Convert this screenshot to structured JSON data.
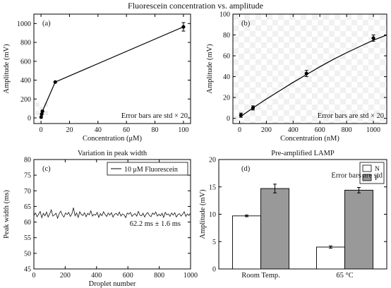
{
  "figure_title": "Fluorescein concentration vs. amplitude",
  "chart_data": [
    {
      "id": "a",
      "type": "line",
      "panel_label": "(a)",
      "title": "",
      "xlabel": "Concentration (μM)",
      "ylabel": "Amplitude (mV)",
      "xlim": [
        -5,
        105
      ],
      "ylim": [
        -60,
        1100
      ],
      "xticks": [
        0,
        20,
        40,
        60,
        80,
        100
      ],
      "yticks": [
        0,
        200,
        400,
        600,
        800,
        1000
      ],
      "grid": false,
      "annotation": "Error bars are std × 20",
      "series": [
        {
          "x": [
            0.1,
            0.5,
            1,
            10,
            100
          ],
          "y": [
            8,
            40,
            70,
            380,
            965
          ],
          "err": [
            0,
            0,
            0,
            0,
            45
          ]
        }
      ]
    },
    {
      "id": "b",
      "type": "line",
      "panel_label": "(b)",
      "title": "",
      "xlabel": "Concentration (nM)",
      "ylabel": "Amplitude (mV)",
      "xlim": [
        -50,
        1100
      ],
      "ylim": [
        -5,
        100
      ],
      "xticks": [
        0,
        200,
        400,
        600,
        800,
        1000
      ],
      "yticks": [
        0,
        20,
        40,
        60,
        80,
        100
      ],
      "grid": false,
      "annotation": "Error bars are std × 20",
      "series": [
        {
          "x": [
            10,
            100,
            500,
            1000
          ],
          "y": [
            3,
            10,
            43,
            77
          ],
          "err": [
            2,
            2,
            3,
            3
          ]
        }
      ],
      "fit": {
        "x": [
          0,
          100,
          200,
          300,
          400,
          500,
          600,
          700,
          800,
          900,
          1000,
          1100
        ],
        "y": [
          1,
          10,
          18.5,
          26.5,
          34.5,
          42,
          49.5,
          56.5,
          63,
          69,
          75,
          80
        ]
      }
    },
    {
      "id": "c",
      "type": "line",
      "panel_label": "(c)",
      "title": "Variation in peak width",
      "xlabel": "Droplet number",
      "ylabel": "Peak width (ms)",
      "xlim": [
        0,
        1000
      ],
      "ylim": [
        45,
        80
      ],
      "xticks": [
        0,
        200,
        400,
        600,
        800,
        1000
      ],
      "yticks": [
        45,
        50,
        55,
        60,
        65,
        70,
        75,
        80
      ],
      "grid": false,
      "legend": "top-right",
      "annotation": "62.2 ms ± 1.6 ms",
      "series": [
        {
          "name": "10 μM Fluorescein",
          "x_range": [
            0,
            1000
          ],
          "values": [
            62.1,
            62.9,
            61.7,
            62.5,
            63.4,
            61.4,
            62.8,
            62.0,
            63.2,
            61.6,
            62.6,
            63.9,
            61.9,
            62.3,
            62.8,
            61.2,
            62.7,
            63.5,
            62.2,
            61.6,
            62.9,
            62.4,
            63.1,
            61.8,
            62.6,
            64.6,
            62.0,
            62.9,
            61.5,
            63.3,
            62.4,
            62.1,
            63.0,
            61.7,
            62.8,
            62.3,
            63.6,
            61.9,
            62.5,
            62.2,
            63.1,
            61.5,
            62.7,
            62.0,
            63.3,
            62.4,
            61.8,
            62.9,
            62.2,
            63.0,
            61.6,
            62.5,
            62.8,
            62.1,
            63.2,
            61.9,
            62.6,
            62.3,
            61.4,
            62.9,
            62.5,
            63.1,
            61.8,
            62.4,
            62.7,
            61.9,
            63.4,
            62.2,
            62.0,
            62.8,
            61.6,
            62.6,
            63.0,
            62.1,
            61.7,
            62.9,
            62.4,
            63.2,
            61.9,
            62.5,
            62.0,
            62.8,
            61.5,
            63.1,
            62.3,
            62.6,
            61.8,
            62.9,
            62.2,
            63.0,
            61.6,
            62.4,
            62.7,
            61.9,
            62.5,
            63.3,
            61.8,
            62.6,
            62.1,
            62.9
          ]
        }
      ]
    },
    {
      "id": "d",
      "type": "bar",
      "panel_label": "(d)",
      "title": "Pre-amplified LAMP",
      "xlabel": "",
      "ylabel": "Amplitude (mV)",
      "ylim": [
        0,
        20
      ],
      "yticks": [
        0,
        5,
        10,
        15,
        20
      ],
      "grid": false,
      "legend": "top-right",
      "annotation": "Error bars are std",
      "categories": [
        "Room Temp.",
        "65 °C"
      ],
      "series": [
        {
          "name": "N",
          "values": [
            9.7,
            4.0
          ],
          "err": [
            0.15,
            0.2
          ],
          "color": "#ffffff"
        },
        {
          "name": "P",
          "values": [
            14.7,
            14.4
          ],
          "err": [
            0.8,
            0.5
          ],
          "color": "#999999"
        }
      ]
    }
  ]
}
